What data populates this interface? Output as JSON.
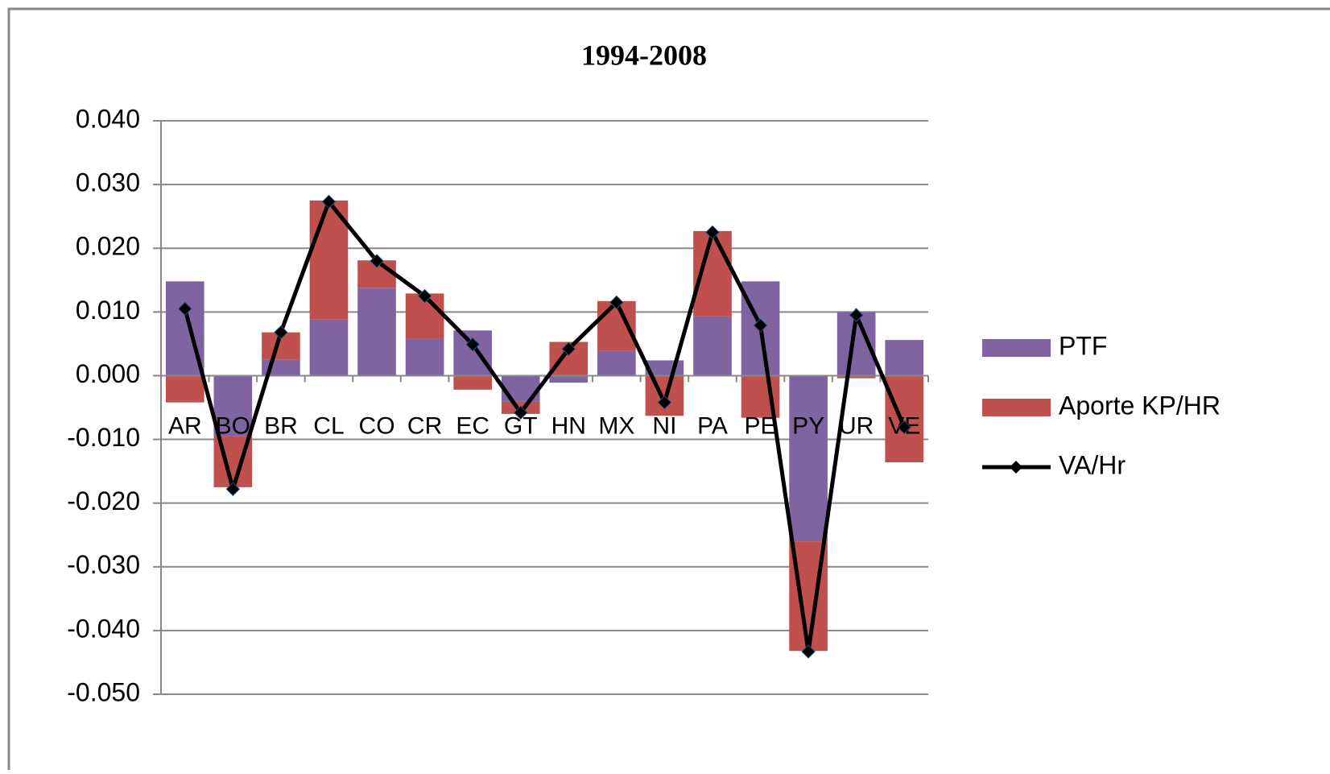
{
  "chart_data": {
    "type": "bar-line",
    "title": "1994-2008",
    "categories": [
      "AR",
      "BO",
      "BR",
      "CL",
      "CO",
      "CR",
      "EC",
      "GT",
      "HN",
      "MX",
      "NI",
      "PA",
      "PE",
      "PY",
      "UR",
      "VE"
    ],
    "series": [
      {
        "name": "PTF",
        "type": "bar",
        "color": "#8064a2",
        "values": [
          0.0148,
          -0.0095,
          0.0025,
          0.0088,
          0.0138,
          0.0058,
          0.0071,
          -0.0041,
          -0.0011,
          0.0039,
          0.0024,
          0.0093,
          0.0148,
          -0.026,
          0.01,
          0.0056
        ]
      },
      {
        "name": "Aporte KP/HR",
        "type": "bar",
        "color": "#c0504d",
        "values": [
          -0.0042,
          -0.008,
          0.0043,
          0.0187,
          0.0043,
          0.0071,
          -0.0022,
          -0.0019,
          0.0053,
          0.0078,
          -0.0063,
          0.0134,
          -0.0066,
          -0.0172,
          -0.0004,
          -0.0136
        ]
      },
      {
        "name": "VA/Hr",
        "type": "line",
        "color": "#000000",
        "values": [
          0.0105,
          -0.0178,
          0.0068,
          0.0273,
          0.018,
          0.0125,
          0.0049,
          -0.0058,
          0.0042,
          0.0115,
          -0.0042,
          0.0225,
          0.0079,
          -0.0433,
          0.0095,
          -0.0081
        ]
      }
    ],
    "ylim": [
      -0.05,
      0.04
    ],
    "yticks": [
      {
        "value": -0.05,
        "label": "-0.050"
      },
      {
        "value": -0.04,
        "label": "-0.040"
      },
      {
        "value": -0.03,
        "label": "-0.030"
      },
      {
        "value": -0.02,
        "label": "-0.020"
      },
      {
        "value": -0.01,
        "label": "-0.010"
      },
      {
        "value": 0,
        "label": "0.000"
      },
      {
        "value": 0.01,
        "label": "0.010"
      },
      {
        "value": 0.02,
        "label": "0.020"
      },
      {
        "value": 0.03,
        "label": "0.030"
      },
      {
        "value": 0.04,
        "label": "0.040"
      }
    ],
    "grid": true,
    "legend": "right"
  }
}
